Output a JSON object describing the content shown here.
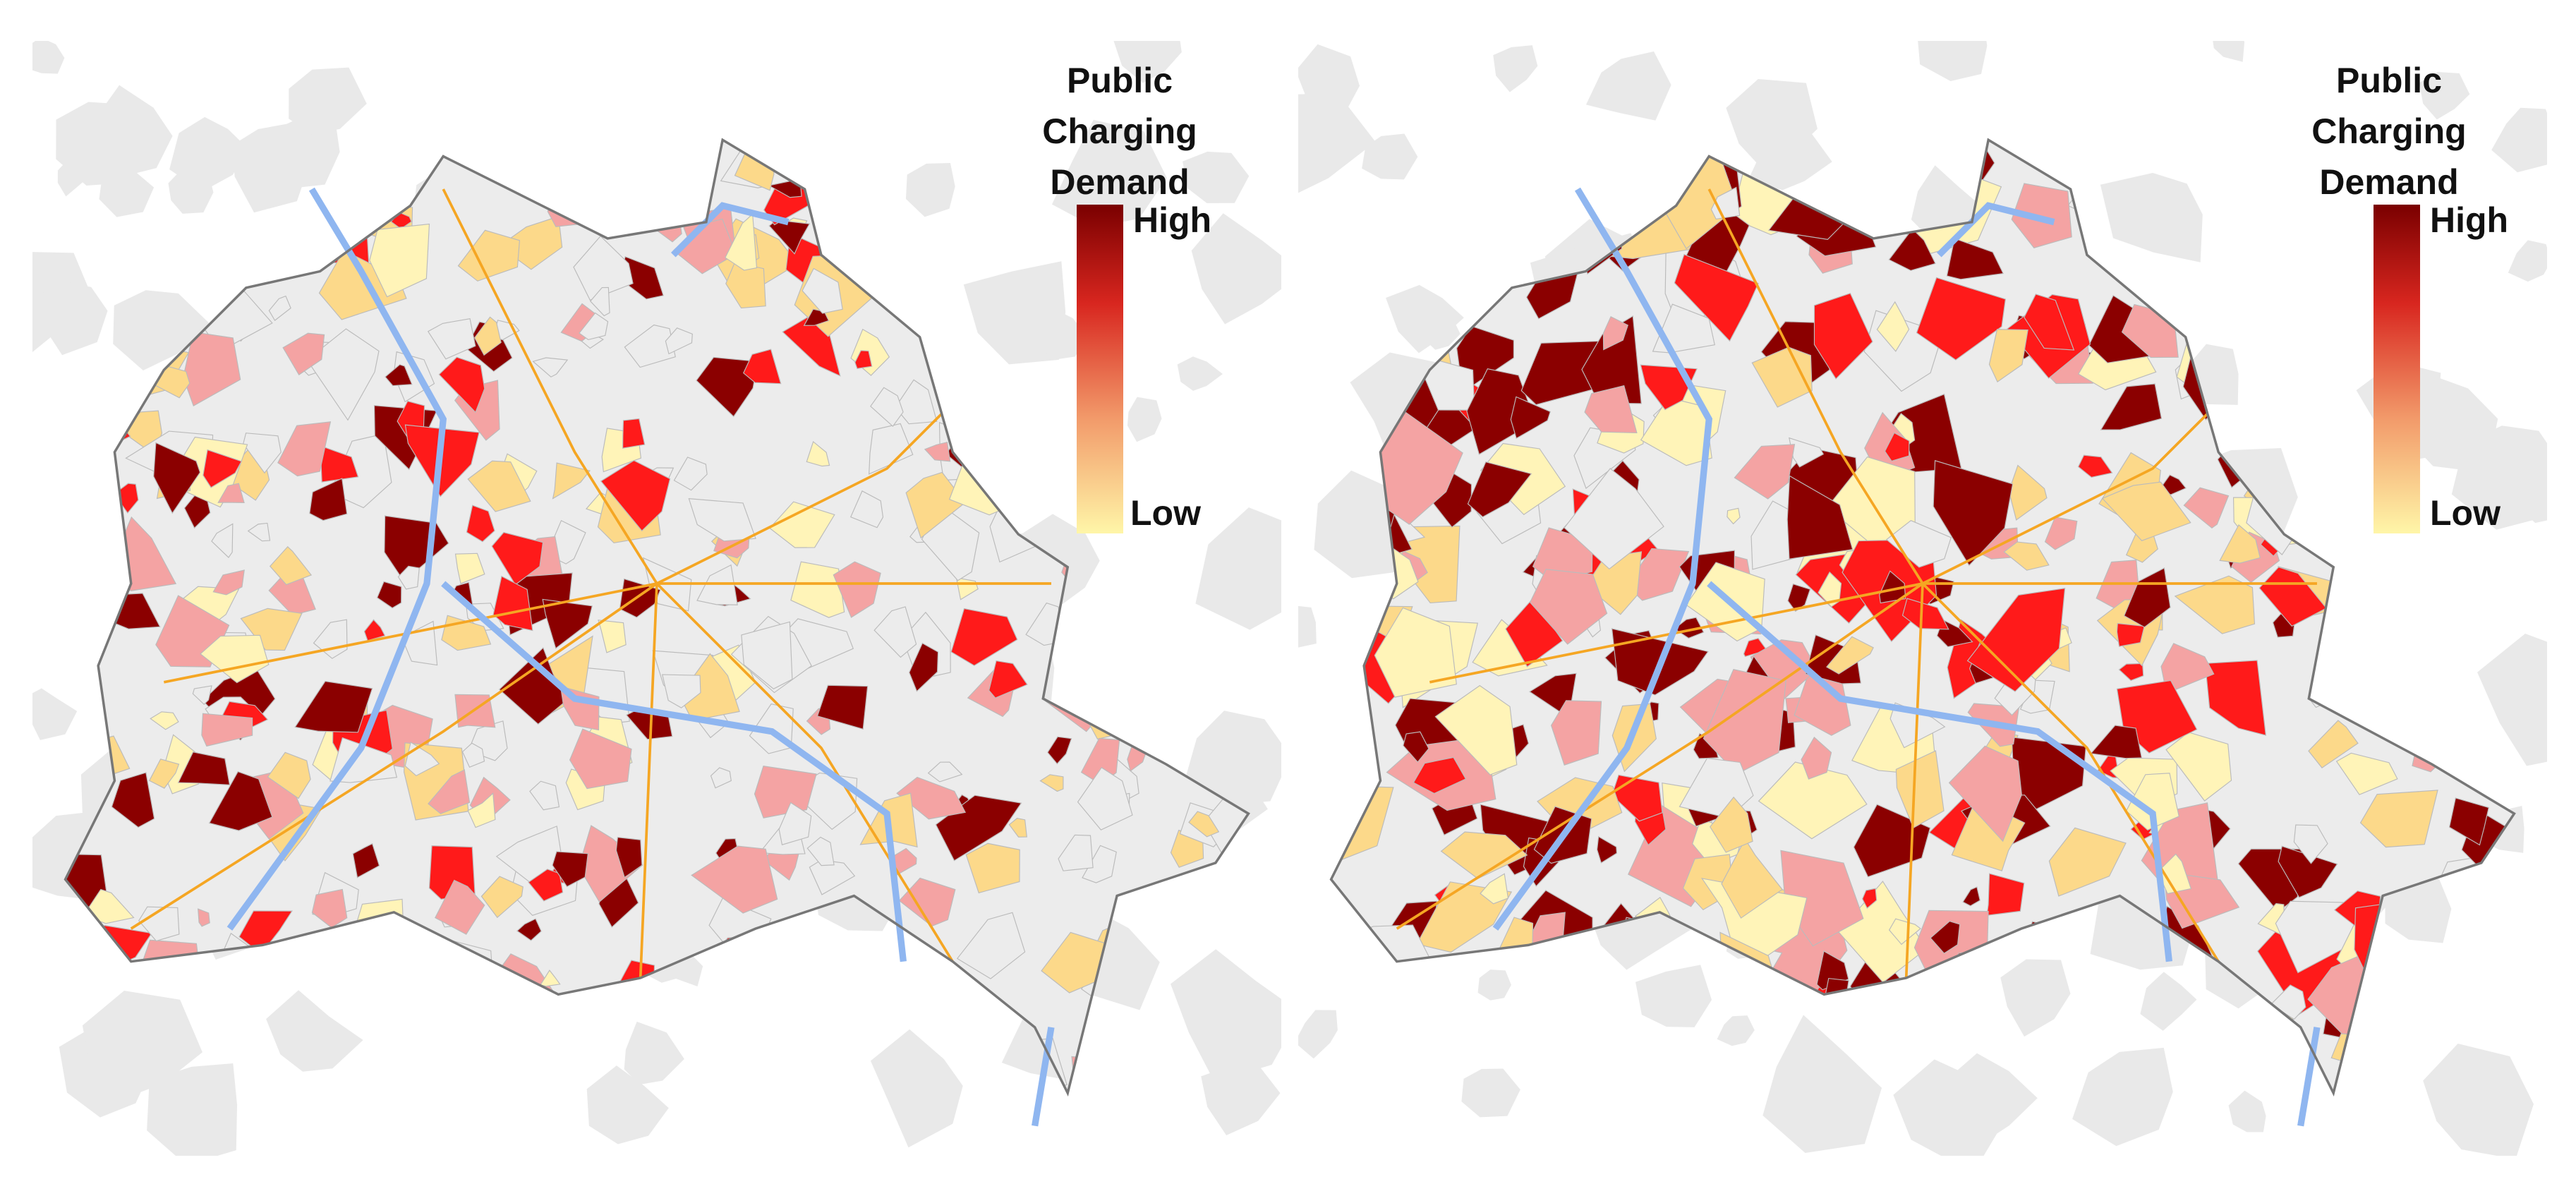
{
  "panels": [
    {
      "legend": {
        "title": "Public Charging Demand",
        "high": "High",
        "low": "Low"
      }
    },
    {
      "legend": {
        "title": "Public Charging Demand",
        "high": "High",
        "low": "Low"
      }
    }
  ]
}
